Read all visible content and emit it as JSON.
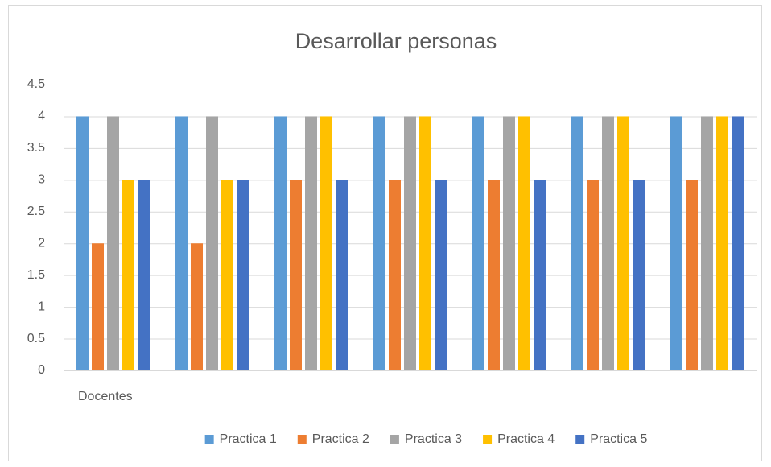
{
  "chart_data": {
    "type": "bar",
    "title": "Desarrollar personas",
    "categories": [
      "Docentes",
      null,
      null,
      null,
      null,
      null,
      null
    ],
    "series": [
      {
        "name": "Practica 1",
        "color": "#5b9bd5",
        "values": [
          4,
          4,
          4,
          4,
          4,
          4,
          4
        ]
      },
      {
        "name": "Practica 2",
        "color": "#ed7d31",
        "values": [
          2,
          2,
          3,
          3,
          3,
          3,
          3
        ]
      },
      {
        "name": "Practica 3",
        "color": "#a5a5a5",
        "values": [
          4,
          4,
          4,
          4,
          4,
          4,
          4
        ]
      },
      {
        "name": "Practica 4",
        "color": "#ffc000",
        "values": [
          3,
          3,
          4,
          4,
          4,
          4,
          4
        ]
      },
      {
        "name": "Practica 5",
        "color": "#4472c4",
        "values": [
          3,
          3,
          3,
          3,
          3,
          3,
          4
        ]
      }
    ],
    "ylim": [
      0,
      4.5
    ],
    "yticks": [
      0,
      0.5,
      1,
      1.5,
      2,
      2.5,
      3,
      3.5,
      4,
      4.5
    ],
    "grid": true,
    "legend": "bottom"
  }
}
